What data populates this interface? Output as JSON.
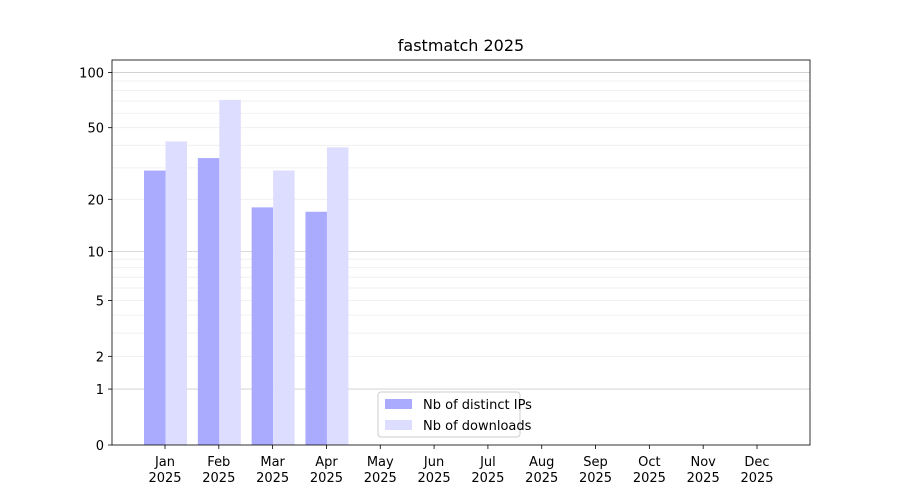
{
  "chart_data": {
    "type": "bar",
    "title": "fastmatch 2025",
    "categories": [
      "Jan\n2025",
      "Feb\n2025",
      "Mar\n2025",
      "Apr\n2025",
      "May\n2025",
      "Jun\n2025",
      "Jul\n2025",
      "Aug\n2025",
      "Sep\n2025",
      "Oct\n2025",
      "Nov\n2025",
      "Dec\n2025"
    ],
    "series": [
      {
        "name": "Nb of distinct IPs",
        "color": "#aaaaff",
        "values": [
          29,
          34,
          18,
          17,
          null,
          null,
          null,
          null,
          null,
          null,
          null,
          null
        ]
      },
      {
        "name": "Nb of downloads",
        "color": "#ddddff",
        "values": [
          42,
          71,
          29,
          39,
          null,
          null,
          null,
          null,
          null,
          null,
          null,
          null
        ]
      }
    ],
    "yscale": "log1p",
    "ylim": [
      0,
      117
    ],
    "yticks": [
      0,
      1,
      2,
      5,
      10,
      20,
      50,
      100
    ],
    "minor_yticks": [
      3,
      4,
      6,
      7,
      8,
      9,
      30,
      40,
      60,
      70,
      80,
      90
    ],
    "grid": true,
    "legend": "lower center"
  }
}
